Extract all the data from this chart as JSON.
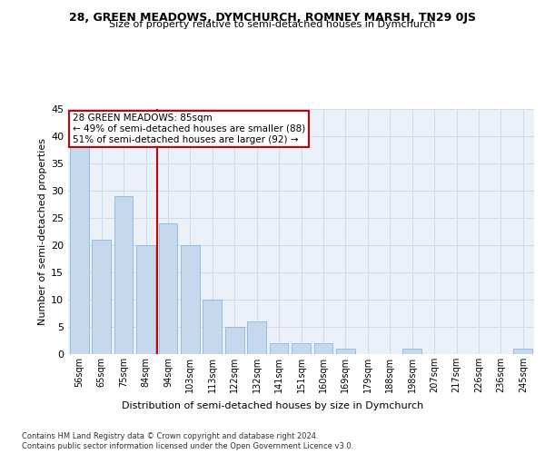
{
  "title1": "28, GREEN MEADOWS, DYMCHURCH, ROMNEY MARSH, TN29 0JS",
  "title2": "Size of property relative to semi-detached houses in Dymchurch",
  "xlabel": "Distribution of semi-detached houses by size in Dymchurch",
  "ylabel": "Number of semi-detached properties",
  "categories": [
    "56sqm",
    "65sqm",
    "75sqm",
    "84sqm",
    "94sqm",
    "103sqm",
    "113sqm",
    "122sqm",
    "132sqm",
    "141sqm",
    "151sqm",
    "160sqm",
    "169sqm",
    "179sqm",
    "188sqm",
    "198sqm",
    "207sqm",
    "217sqm",
    "226sqm",
    "236sqm",
    "245sqm"
  ],
  "values": [
    38,
    21,
    29,
    20,
    24,
    20,
    10,
    5,
    6,
    2,
    2,
    2,
    1,
    0,
    0,
    1,
    0,
    0,
    0,
    0,
    1
  ],
  "bar_color": "#c5d8ed",
  "bar_edgecolor": "#7bafd4",
  "grid_color": "#d0dce8",
  "background_color": "#eaf1f8",
  "vline_x": 3.5,
  "vline_color": "#cc0000",
  "annotation_title": "28 GREEN MEADOWS: 85sqm",
  "annotation_line1": "← 49% of semi-detached houses are smaller (88)",
  "annotation_line2": "51% of semi-detached houses are larger (92) →",
  "annotation_box_color": "#cc0000",
  "footer1": "Contains HM Land Registry data © Crown copyright and database right 2024.",
  "footer2": "Contains public sector information licensed under the Open Government Licence v3.0.",
  "ylim": [
    0,
    45
  ],
  "yticks": [
    0,
    5,
    10,
    15,
    20,
    25,
    30,
    35,
    40,
    45
  ]
}
